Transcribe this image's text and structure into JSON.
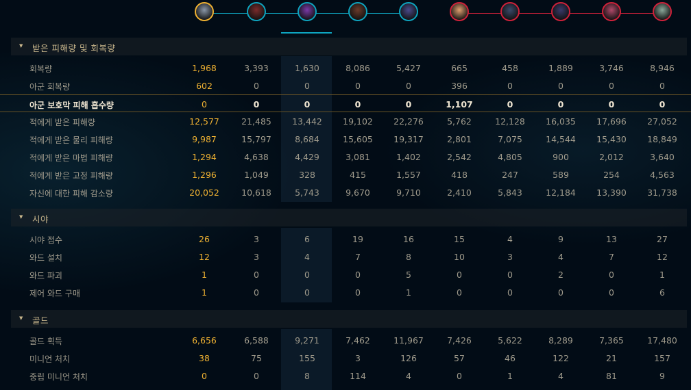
{
  "colors": {
    "ally": "#0ea5c0",
    "enemy": "#d0213a",
    "self": "#f0b232"
  },
  "champions": [
    {
      "team": "ally",
      "self": true,
      "color": "#8a97a8"
    },
    {
      "team": "ally",
      "color": "#7a2b2b"
    },
    {
      "team": "ally",
      "color": "#7a3aa8",
      "selected": true
    },
    {
      "team": "ally",
      "color": "#6a3a2a"
    },
    {
      "team": "ally",
      "color": "#4a4a8a"
    },
    {
      "team": "enemy",
      "color": "#e0a070"
    },
    {
      "team": "enemy",
      "color": "#3a4a6a"
    },
    {
      "team": "enemy",
      "color": "#3a3a6a"
    },
    {
      "team": "enemy",
      "color": "#b04a6a"
    },
    {
      "team": "enemy",
      "color": "#8aa89a"
    }
  ],
  "sections": [
    {
      "title": "받은 피해량 및 회복량",
      "rows": [
        {
          "label": "회복량",
          "values": [
            "1,968",
            "3,393",
            "1,630",
            "8,086",
            "5,427",
            "665",
            "458",
            "1,889",
            "3,746",
            "8,946"
          ]
        },
        {
          "label": "아군 회복량",
          "values": [
            "602",
            "0",
            "0",
            "0",
            "0",
            "396",
            "0",
            "0",
            "0",
            "0"
          ]
        },
        {
          "label": "아군 보호막 피해 흡수량",
          "bold": true,
          "values": [
            "0",
            "0",
            "0",
            "0",
            "0",
            "1,107",
            "0",
            "0",
            "0",
            "0"
          ]
        },
        {
          "label": "적에게 받은 피해량",
          "values": [
            "12,577",
            "21,485",
            "13,442",
            "19,102",
            "22,276",
            "5,762",
            "12,128",
            "16,035",
            "17,696",
            "27,052"
          ]
        },
        {
          "label": "적에게 받은 물리 피해량",
          "values": [
            "9,987",
            "15,797",
            "8,684",
            "15,605",
            "19,317",
            "2,801",
            "7,075",
            "14,544",
            "15,430",
            "18,849"
          ]
        },
        {
          "label": "적에게 받은 마법 피해량",
          "values": [
            "1,294",
            "4,638",
            "4,429",
            "3,081",
            "1,402",
            "2,542",
            "4,805",
            "900",
            "2,012",
            "3,640"
          ]
        },
        {
          "label": "적에게 받은 고정 피해량",
          "values": [
            "1,296",
            "1,049",
            "328",
            "415",
            "1,557",
            "418",
            "247",
            "589",
            "254",
            "4,563"
          ]
        },
        {
          "label": "자신에 대한 피해 감소량",
          "values": [
            "20,052",
            "10,618",
            "5,743",
            "9,670",
            "9,710",
            "2,410",
            "5,843",
            "12,184",
            "13,390",
            "31,738"
          ]
        }
      ]
    },
    {
      "title": "시야",
      "rows": [
        {
          "label": "시야 점수",
          "values": [
            "26",
            "3",
            "6",
            "19",
            "16",
            "15",
            "4",
            "9",
            "13",
            "27"
          ]
        },
        {
          "label": "와드 설치",
          "values": [
            "12",
            "3",
            "4",
            "7",
            "8",
            "10",
            "3",
            "4",
            "7",
            "12"
          ]
        },
        {
          "label": "와드 파괴",
          "values": [
            "1",
            "0",
            "0",
            "0",
            "5",
            "0",
            "0",
            "2",
            "0",
            "1"
          ]
        },
        {
          "label": "제어 와드 구매",
          "values": [
            "1",
            "0",
            "0",
            "0",
            "1",
            "0",
            "0",
            "0",
            "0",
            "6"
          ]
        }
      ]
    },
    {
      "title": "골드",
      "rows": [
        {
          "label": "골드 획득",
          "values": [
            "6,656",
            "6,588",
            "9,271",
            "7,462",
            "11,967",
            "7,426",
            "5,622",
            "8,289",
            "7,365",
            "17,480"
          ]
        },
        {
          "label": "미니언 처치",
          "values": [
            "38",
            "75",
            "155",
            "3",
            "126",
            "57",
            "46",
            "122",
            "21",
            "157"
          ]
        },
        {
          "label": "중립 미니언 처치",
          "values": [
            "0",
            "0",
            "8",
            "114",
            "4",
            "0",
            "1",
            "4",
            "81",
            "9"
          ]
        }
      ]
    }
  ]
}
